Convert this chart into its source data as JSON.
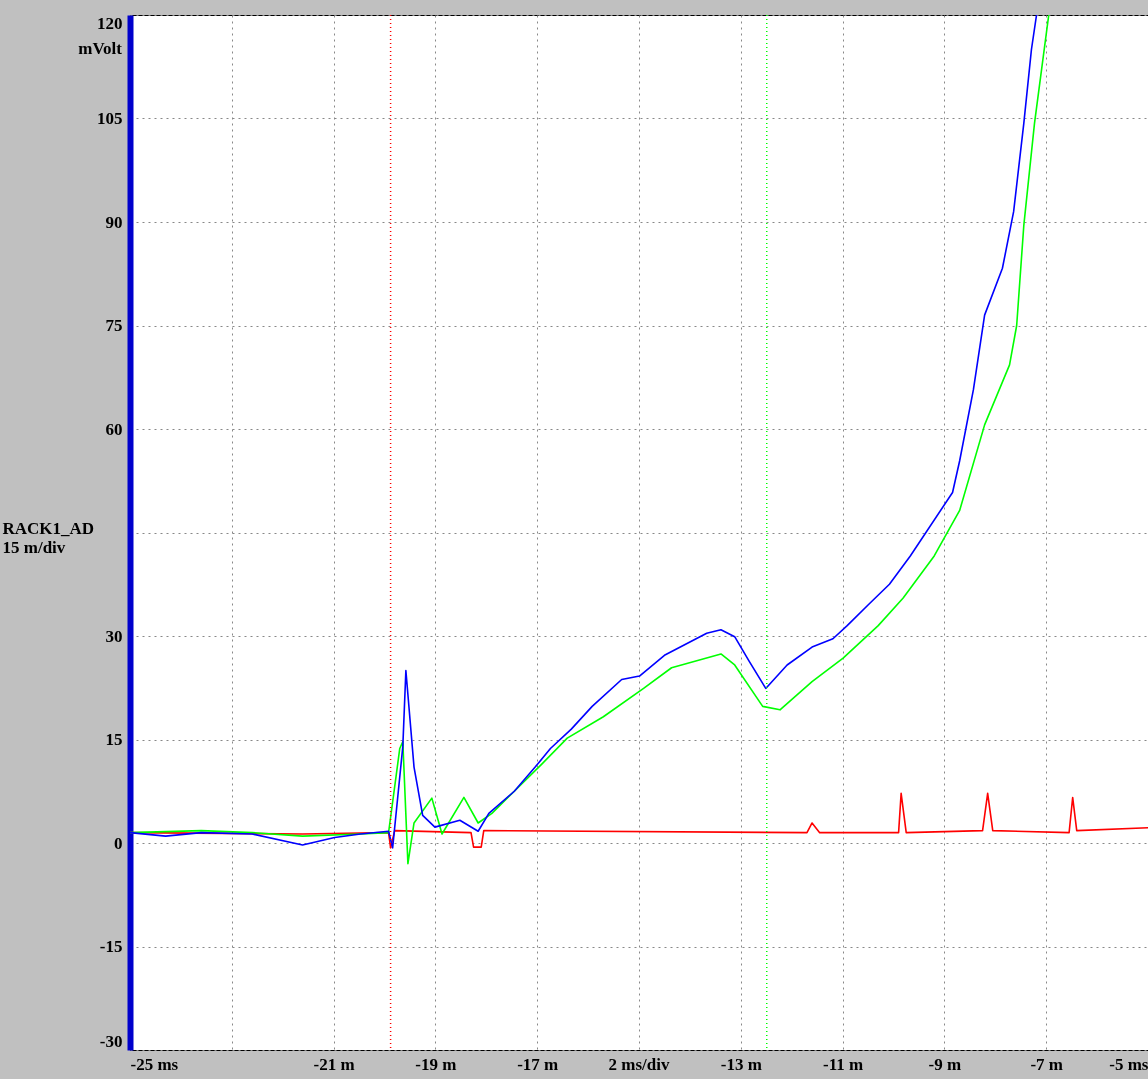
{
  "chart_data": {
    "type": "line",
    "ylabel": "RACK1_AD\n15 m/div",
    "annotations": [
      "mVolt"
    ],
    "xlabel": "2 ms/div",
    "xlim": [
      -25,
      -5
    ],
    "ylim": [
      -30,
      120
    ],
    "xticks": [
      {
        "value": -25,
        "label": "-25 ms"
      },
      {
        "value": -23,
        "label": null
      },
      {
        "value": -21,
        "label": "-21 m"
      },
      {
        "value": -19,
        "label": "-19 m"
      },
      {
        "value": -17,
        "label": "-17 m"
      },
      {
        "value": -15,
        "label": null
      },
      {
        "value": -13,
        "label": "-13 m"
      },
      {
        "value": -11,
        "label": "-11 m"
      },
      {
        "value": -9,
        "label": "-9 m"
      },
      {
        "value": -7,
        "label": "-7 m"
      },
      {
        "value": -5,
        "label": "-5 ms"
      }
    ],
    "yticks": [
      -30,
      -15,
      0,
      15,
      30,
      {
        "value": 45,
        "label": null
      },
      60,
      75,
      90,
      105,
      120
    ],
    "grid": true,
    "line_style": "solid",
    "marker": "none",
    "legend": false,
    "ref_lines": [
      {
        "axis": "x",
        "value": -19.88,
        "label": null,
        "color": "#ff0000",
        "line_style": "dotted"
      },
      {
        "axis": "x",
        "value": -12.49,
        "label": null,
        "color": "#00ff00",
        "line_style": "dotted"
      }
    ],
    "series": [
      {
        "color": "#ff0000",
        "x": [
          -25,
          -21.61,
          -19.92,
          -19.88,
          -19.8,
          -18.3,
          -18.25,
          -18.1,
          -18.05,
          -11.7,
          -11.6,
          -11.45,
          -9.9,
          -9.85,
          -9.75,
          -8.25,
          -8.15,
          -8.05,
          -6.55,
          -6.48,
          -6.4,
          -5
        ],
        "values": [
          1.5,
          1.3,
          1.5,
          -0.7,
          1.8,
          1.5,
          -0.6,
          -0.6,
          1.8,
          1.5,
          2.9,
          1.5,
          1.5,
          7.2,
          1.5,
          1.8,
          7.2,
          1.8,
          1.5,
          6.6,
          1.8,
          2.2
        ]
      },
      {
        "color": "#00ff00",
        "x": [
          -25,
          -23.6,
          -22.6,
          -21.61,
          -20.47,
          -19.92,
          -19.7,
          -19.64,
          -19.54,
          -19.42,
          -19.07,
          -18.87,
          -18.44,
          -18.16,
          -17.89,
          -17.45,
          -16.9,
          -16.41,
          -15.7,
          -14.91,
          -14.36,
          -13.39,
          -13.12,
          -12.57,
          -12.23,
          -11.6,
          -10.99,
          -10.3,
          -9.81,
          -9.2,
          -8.7,
          -8.21,
          -7.72,
          -7.58,
          -7.44,
          -7.23,
          -6.95
        ],
        "values": [
          1.5,
          1.8,
          1.5,
          1.0,
          1.3,
          1.5,
          13.7,
          14.7,
          -3,
          2.9,
          6.5,
          1.3,
          6.6,
          2.9,
          4.3,
          7.5,
          11.5,
          15.2,
          18.3,
          22.4,
          25.4,
          27.4,
          25.8,
          19.8,
          19.3,
          23.4,
          26.8,
          31.5,
          35.5,
          41.6,
          48.2,
          60.6,
          69.3,
          75,
          89.5,
          104.3,
          120
        ]
      },
      {
        "color": "#0000ff",
        "x": [
          -25,
          -24.3,
          -23.6,
          -22.6,
          -21.61,
          -20.98,
          -20.47,
          -19.92,
          -19.84,
          -19.64,
          -19.58,
          -19.42,
          -19.25,
          -19.01,
          -18.52,
          -18.16,
          -17.95,
          -17.45,
          -17.04,
          -16.74,
          -16.33,
          -15.92,
          -15.34,
          -14.99,
          -14.5,
          -13.67,
          -13.39,
          -13.12,
          -12.84,
          -12.51,
          -12.09,
          -11.6,
          -11.19,
          -10.91,
          -10.5,
          -10.08,
          -9.67,
          -8.84,
          -8.7,
          -8.43,
          -8.21,
          -7.86,
          -7.64,
          -7.44,
          -7.29,
          -7.19
        ],
        "values": [
          1.5,
          1.0,
          1.5,
          1.3,
          -0.3,
          0.8,
          1.3,
          1.7,
          -0.7,
          14,
          25,
          11,
          4,
          2.3,
          3.3,
          1.7,
          4.3,
          7.5,
          11,
          13.7,
          16.5,
          19.8,
          23.7,
          24.2,
          27.2,
          30.4,
          30.9,
          29.9,
          26.4,
          22.4,
          25.8,
          28.4,
          29.6,
          31.5,
          34.5,
          37.5,
          41.6,
          50.8,
          55.4,
          65.7,
          76.5,
          83.3,
          91.5,
          104.3,
          115,
          120
        ]
      }
    ]
  }
}
